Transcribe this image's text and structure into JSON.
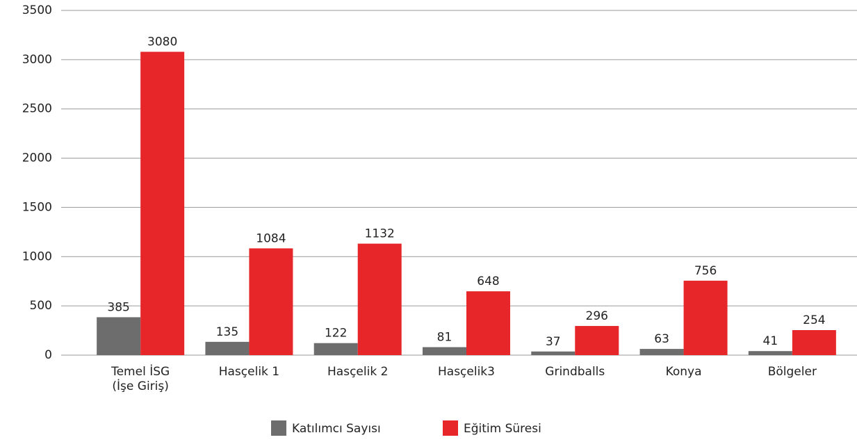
{
  "chart_data": {
    "type": "bar",
    "categories": [
      "Temel İSG\n(İşe Giriş)",
      "Hasçelik 1",
      "Hasçelik 2",
      "Hasçelik3",
      "Grindballs",
      "Konya",
      "Bölgeler"
    ],
    "series": [
      {
        "name": "Katılımcı Sayısı",
        "color": "#6d6d6d",
        "values": [
          385,
          135,
          122,
          81,
          37,
          63,
          41
        ]
      },
      {
        "name": "Eğitim Süresi",
        "color": "#e62628",
        "values": [
          3080,
          1084,
          1132,
          648,
          296,
          756,
          254
        ]
      }
    ],
    "ylim": [
      0,
      3500
    ],
    "yticks": [
      0,
      500,
      1000,
      1500,
      2000,
      2500,
      3000,
      3500
    ],
    "grid": true
  }
}
